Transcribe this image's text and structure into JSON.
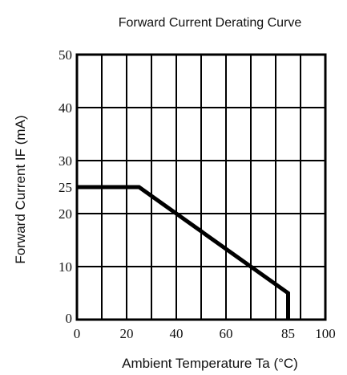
{
  "chart_data": {
    "type": "line",
    "title": "Forward Current Derating Curve",
    "xlabel": "Ambient Temperature Ta (°C)",
    "ylabel": "Forward Current  IF (mA)",
    "xlim": [
      0,
      100
    ],
    "ylim": [
      0,
      50
    ],
    "grid": true,
    "x_gridlines": [
      0,
      10,
      20,
      30,
      40,
      50,
      60,
      70,
      80,
      90,
      100
    ],
    "y_gridlines": [
      0,
      10,
      20,
      30,
      40,
      50
    ],
    "x_ticks": [
      {
        "value": 0,
        "label": "0"
      },
      {
        "value": 20,
        "label": "20"
      },
      {
        "value": 40,
        "label": "40"
      },
      {
        "value": 60,
        "label": "60"
      },
      {
        "value": 85,
        "label": "85"
      },
      {
        "value": 100,
        "label": "100"
      }
    ],
    "y_ticks": [
      {
        "value": 0,
        "label": "0"
      },
      {
        "value": 10,
        "label": "10"
      },
      {
        "value": 20,
        "label": "20"
      },
      {
        "value": 25,
        "label": "25"
      },
      {
        "value": 30,
        "label": "30"
      },
      {
        "value": 40,
        "label": "40"
      },
      {
        "value": 50,
        "label": "50"
      }
    ],
    "series": [
      {
        "x": [
          0,
          25,
          85,
          85
        ],
        "y": [
          25,
          25,
          5,
          0
        ]
      }
    ]
  }
}
